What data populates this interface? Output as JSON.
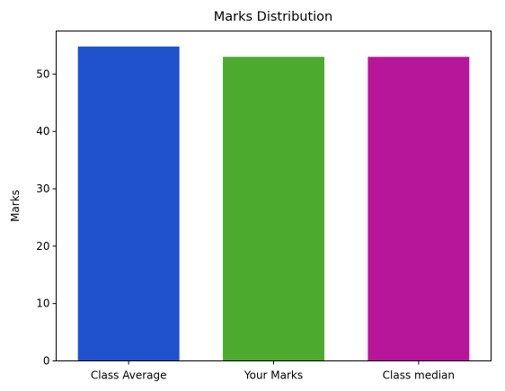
{
  "chart_data": {
    "type": "bar",
    "title": "Marks Distribution",
    "xlabel": "",
    "ylabel": "Marks",
    "categories": [
      "Class Average",
      "Your Marks",
      "Class median"
    ],
    "values": [
      54.8,
      53,
      53
    ],
    "colors": [
      "#1f52cc",
      "#4caa2e",
      "#b8169a"
    ],
    "ylim": [
      0,
      57.5
    ],
    "yticks": [
      "0",
      "10",
      "20",
      "30",
      "40",
      "50"
    ],
    "grid": false
  }
}
